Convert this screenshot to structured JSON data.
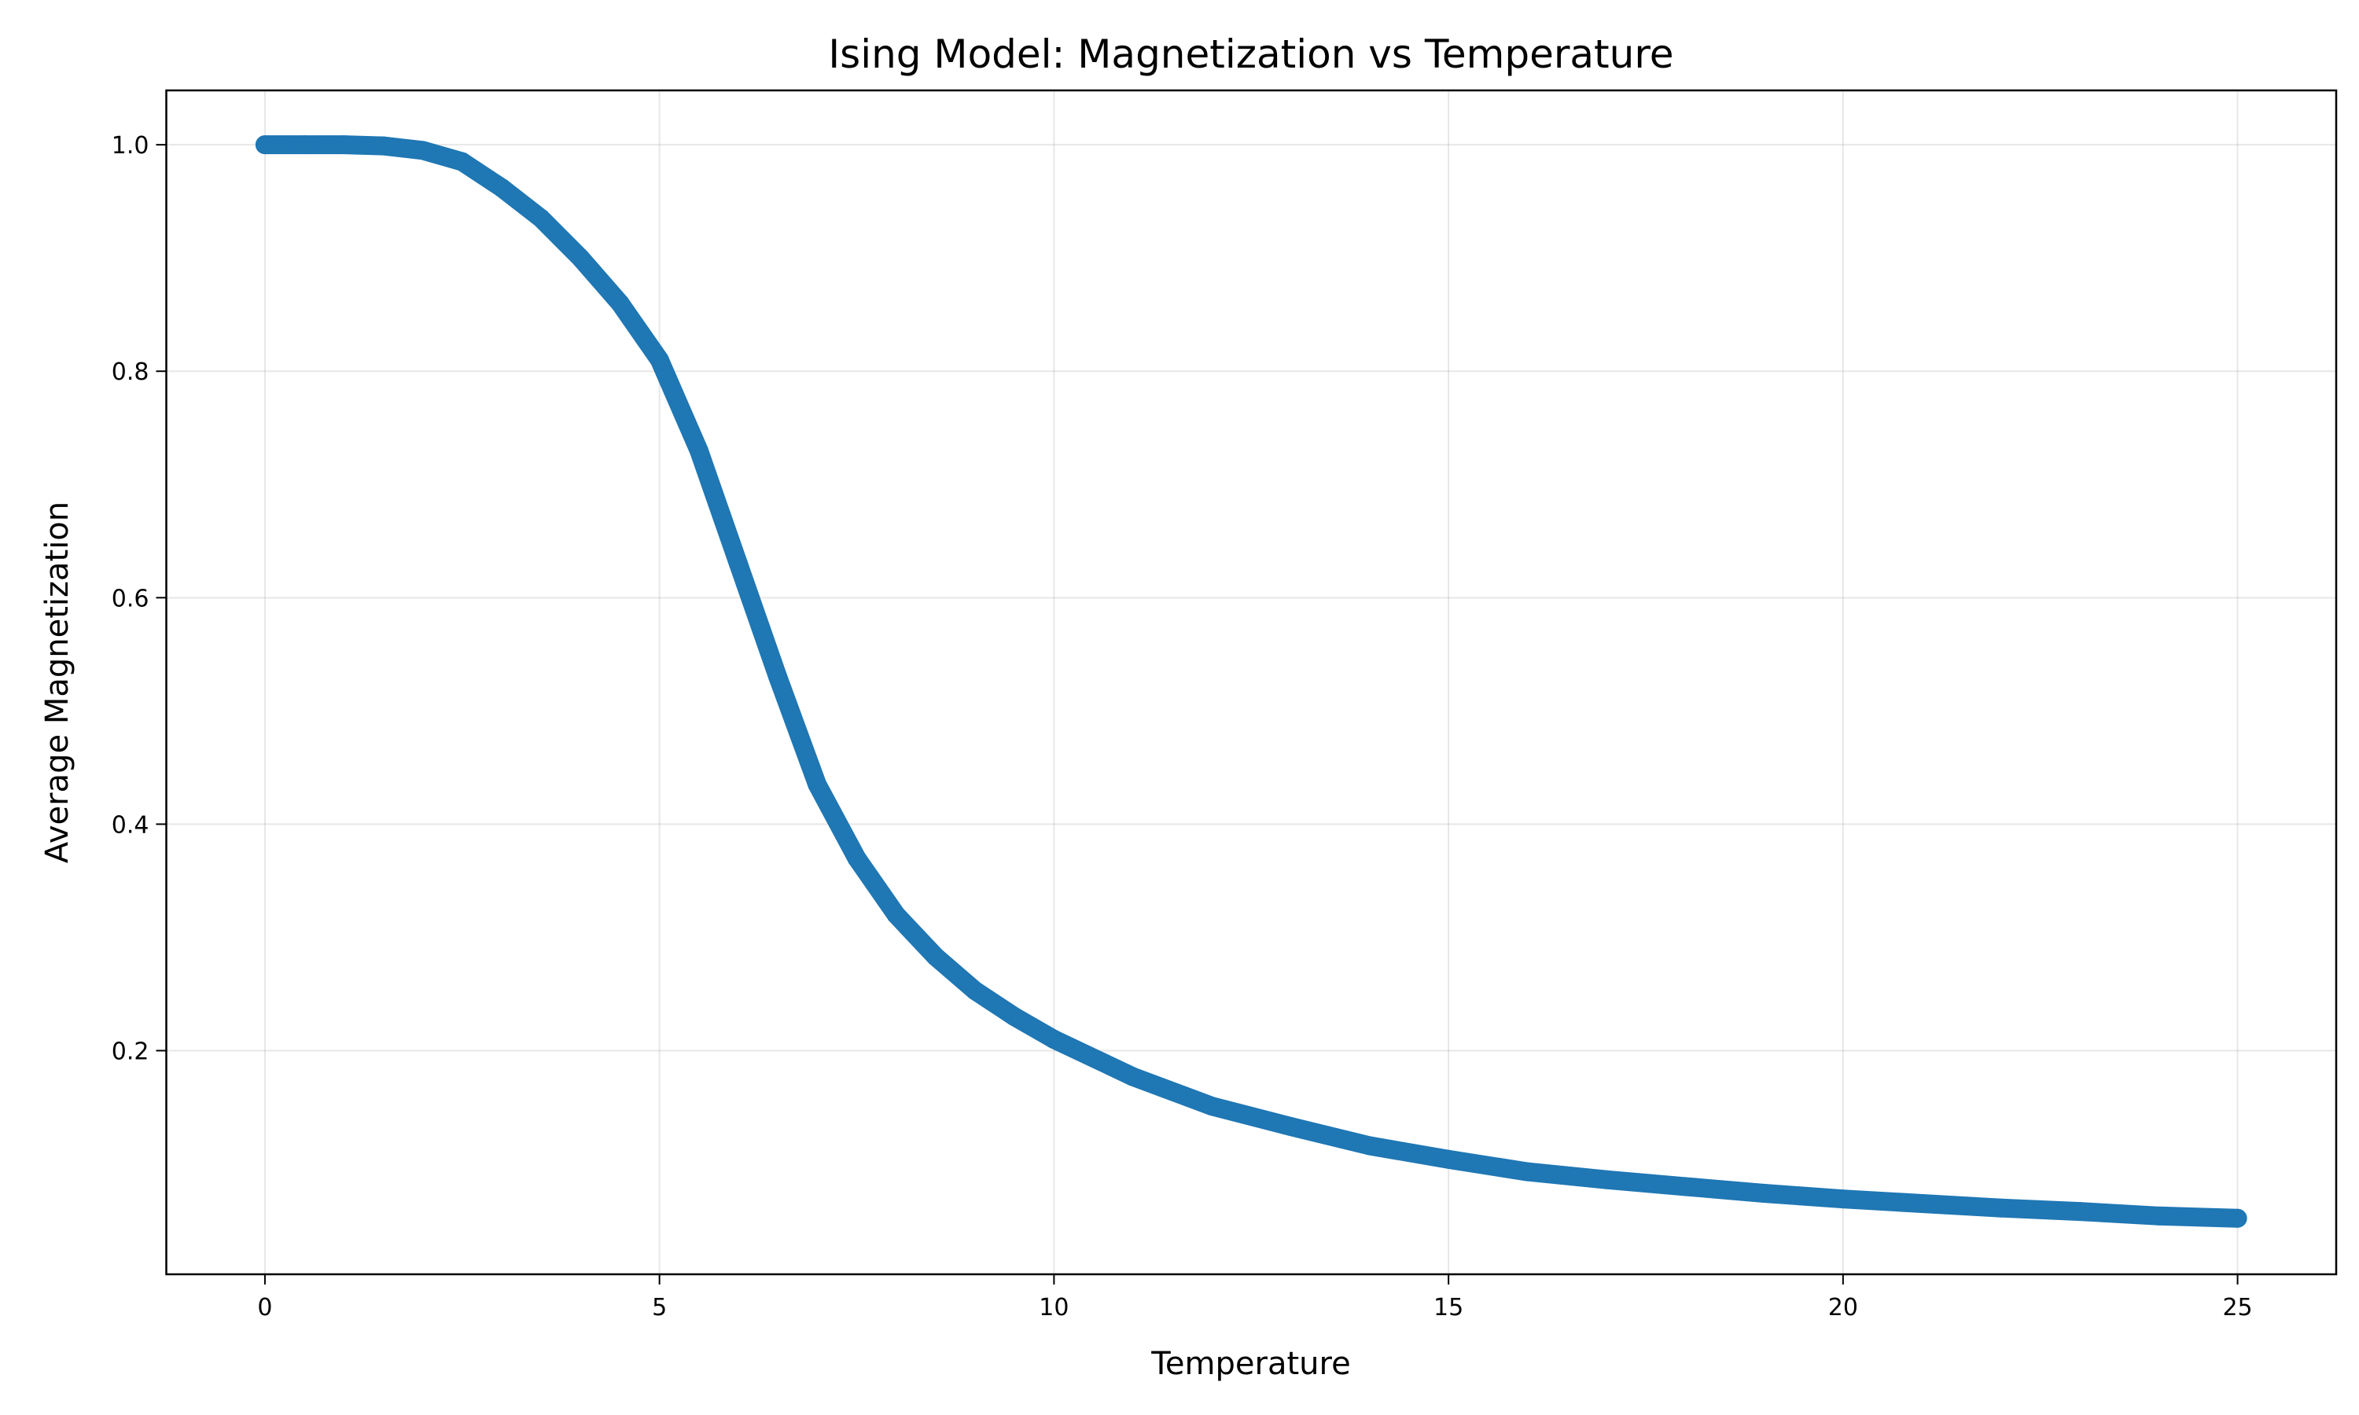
{
  "chart_data": {
    "type": "scatter",
    "title": "Ising Model: Magnetization vs Temperature",
    "xlabel": "Temperature",
    "ylabel": "Average Magnetization",
    "xlim": [
      -1.25,
      26.25
    ],
    "ylim": [
      0.0025,
      1.048
    ],
    "xticks": [
      0,
      5,
      10,
      15,
      20,
      25
    ],
    "xtick_labels": [
      "0",
      "5",
      "10",
      "15",
      "20",
      "25"
    ],
    "yticks": [
      0.2,
      0.4,
      0.6,
      0.8,
      1.0
    ],
    "ytick_labels": [
      "0.2",
      "0.4",
      "0.6",
      "0.8",
      "1.0"
    ],
    "grid": true,
    "color": "#1f77b4",
    "series": [
      {
        "x": [
          0,
          0.5,
          1,
          1.5,
          2,
          2.5,
          3,
          3.5,
          4,
          4.5,
          5,
          5.5,
          6,
          6.5,
          7,
          7.5,
          8,
          8.5,
          9,
          9.5,
          10,
          11,
          12,
          13,
          14,
          15,
          16,
          17,
          18,
          19,
          20,
          21,
          22,
          23,
          24,
          25
        ],
        "y": [
          1.0,
          1.0,
          1.0,
          0.999,
          0.995,
          0.985,
          0.962,
          0.935,
          0.9,
          0.86,
          0.81,
          0.73,
          0.63,
          0.53,
          0.435,
          0.37,
          0.32,
          0.283,
          0.253,
          0.23,
          0.21,
          0.177,
          0.151,
          0.133,
          0.116,
          0.104,
          0.093,
          0.086,
          0.08,
          0.074,
          0.069,
          0.065,
          0.061,
          0.058,
          0.054,
          0.052
        ]
      }
    ]
  }
}
